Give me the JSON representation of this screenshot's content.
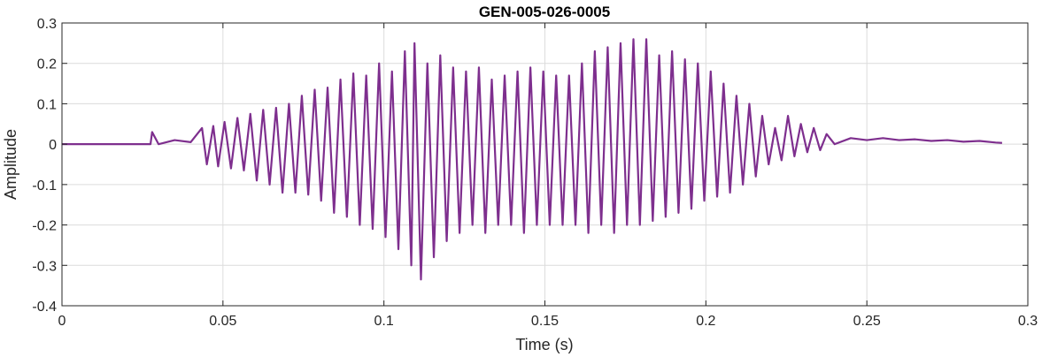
{
  "chart_data": {
    "type": "line",
    "title": "GEN-005-026-0005",
    "xlabel": "Time (s)",
    "ylabel": "Amplitude",
    "xlim": [
      0,
      0.3
    ],
    "ylim": [
      -0.4,
      0.3
    ],
    "xticks": [
      0,
      0.05,
      0.1,
      0.15,
      0.2,
      0.25,
      0.3
    ],
    "xtick_labels": [
      "0",
      "0.05",
      "0.1",
      "0.15",
      "0.2",
      "0.25",
      "0.3"
    ],
    "yticks": [
      -0.4,
      -0.3,
      -0.2,
      -0.1,
      0,
      0.1,
      0.2,
      0.3
    ],
    "ytick_labels": [
      "-0.4",
      "-0.3",
      "-0.2",
      "-0.1",
      "0",
      "0.1",
      "0.2",
      "0.3"
    ],
    "grid": true,
    "series": [
      {
        "color": "#7e2f8e",
        "x": [
          0,
          0.0275,
          0.028,
          0.03,
          0.035,
          0.04,
          0.0435,
          0.045,
          0.047,
          0.0485,
          0.0505,
          0.0525,
          0.0545,
          0.0565,
          0.0585,
          0.0605,
          0.0625,
          0.0645,
          0.0665,
          0.0685,
          0.0705,
          0.0725,
          0.0745,
          0.0765,
          0.0785,
          0.0805,
          0.0825,
          0.0845,
          0.0865,
          0.0885,
          0.0905,
          0.0925,
          0.0945,
          0.0965,
          0.0985,
          0.1005,
          0.1025,
          0.1045,
          0.1065,
          0.1085,
          0.1095,
          0.1115,
          0.1135,
          0.1155,
          0.1175,
          0.1195,
          0.1215,
          0.1235,
          0.1255,
          0.1275,
          0.1295,
          0.1315,
          0.1335,
          0.1355,
          0.1375,
          0.1395,
          0.1415,
          0.1435,
          0.1455,
          0.1475,
          0.1495,
          0.1515,
          0.1535,
          0.1555,
          0.1575,
          0.1595,
          0.1615,
          0.1635,
          0.1655,
          0.1675,
          0.1695,
          0.1715,
          0.1735,
          0.1755,
          0.1775,
          0.1795,
          0.1815,
          0.1835,
          0.1855,
          0.1875,
          0.1895,
          0.1915,
          0.1935,
          0.1955,
          0.1975,
          0.1995,
          0.2015,
          0.2035,
          0.2055,
          0.2075,
          0.2095,
          0.2115,
          0.2135,
          0.2155,
          0.2175,
          0.2195,
          0.2215,
          0.2235,
          0.2255,
          0.2275,
          0.2295,
          0.2315,
          0.2335,
          0.2355,
          0.2375,
          0.24,
          0.245,
          0.25,
          0.255,
          0.26,
          0.265,
          0.27,
          0.275,
          0.28,
          0.285,
          0.29,
          0.292
        ],
        "y": [
          0.0,
          0.0,
          0.03,
          0.0,
          0.01,
          0.005,
          0.04,
          -0.05,
          0.045,
          -0.055,
          0.055,
          -0.06,
          0.065,
          -0.065,
          0.075,
          -0.09,
          0.085,
          -0.1,
          0.09,
          -0.12,
          0.1,
          -0.12,
          0.12,
          -0.125,
          0.135,
          -0.14,
          0.14,
          -0.17,
          0.16,
          -0.18,
          0.175,
          -0.2,
          0.17,
          -0.21,
          0.2,
          -0.23,
          0.18,
          -0.26,
          0.23,
          -0.3,
          0.25,
          -0.335,
          0.2,
          -0.28,
          0.22,
          -0.24,
          0.19,
          -0.22,
          0.18,
          -0.2,
          0.19,
          -0.22,
          0.16,
          -0.2,
          0.17,
          -0.2,
          0.18,
          -0.22,
          0.19,
          -0.2,
          0.18,
          -0.2,
          0.17,
          -0.2,
          0.17,
          -0.2,
          0.2,
          -0.22,
          0.23,
          -0.2,
          0.24,
          -0.22,
          0.25,
          -0.2,
          0.26,
          -0.2,
          0.26,
          -0.19,
          0.22,
          -0.18,
          0.23,
          -0.17,
          0.21,
          -0.16,
          0.2,
          -0.14,
          0.18,
          -0.13,
          0.15,
          -0.12,
          0.12,
          -0.1,
          0.1,
          -0.08,
          0.07,
          -0.05,
          0.04,
          -0.04,
          0.07,
          -0.03,
          0.05,
          -0.02,
          0.04,
          -0.015,
          0.025,
          0.0,
          0.015,
          0.01,
          0.015,
          0.01,
          0.012,
          0.008,
          0.01,
          0.006,
          0.008,
          0.004,
          0.003
        ]
      }
    ]
  }
}
